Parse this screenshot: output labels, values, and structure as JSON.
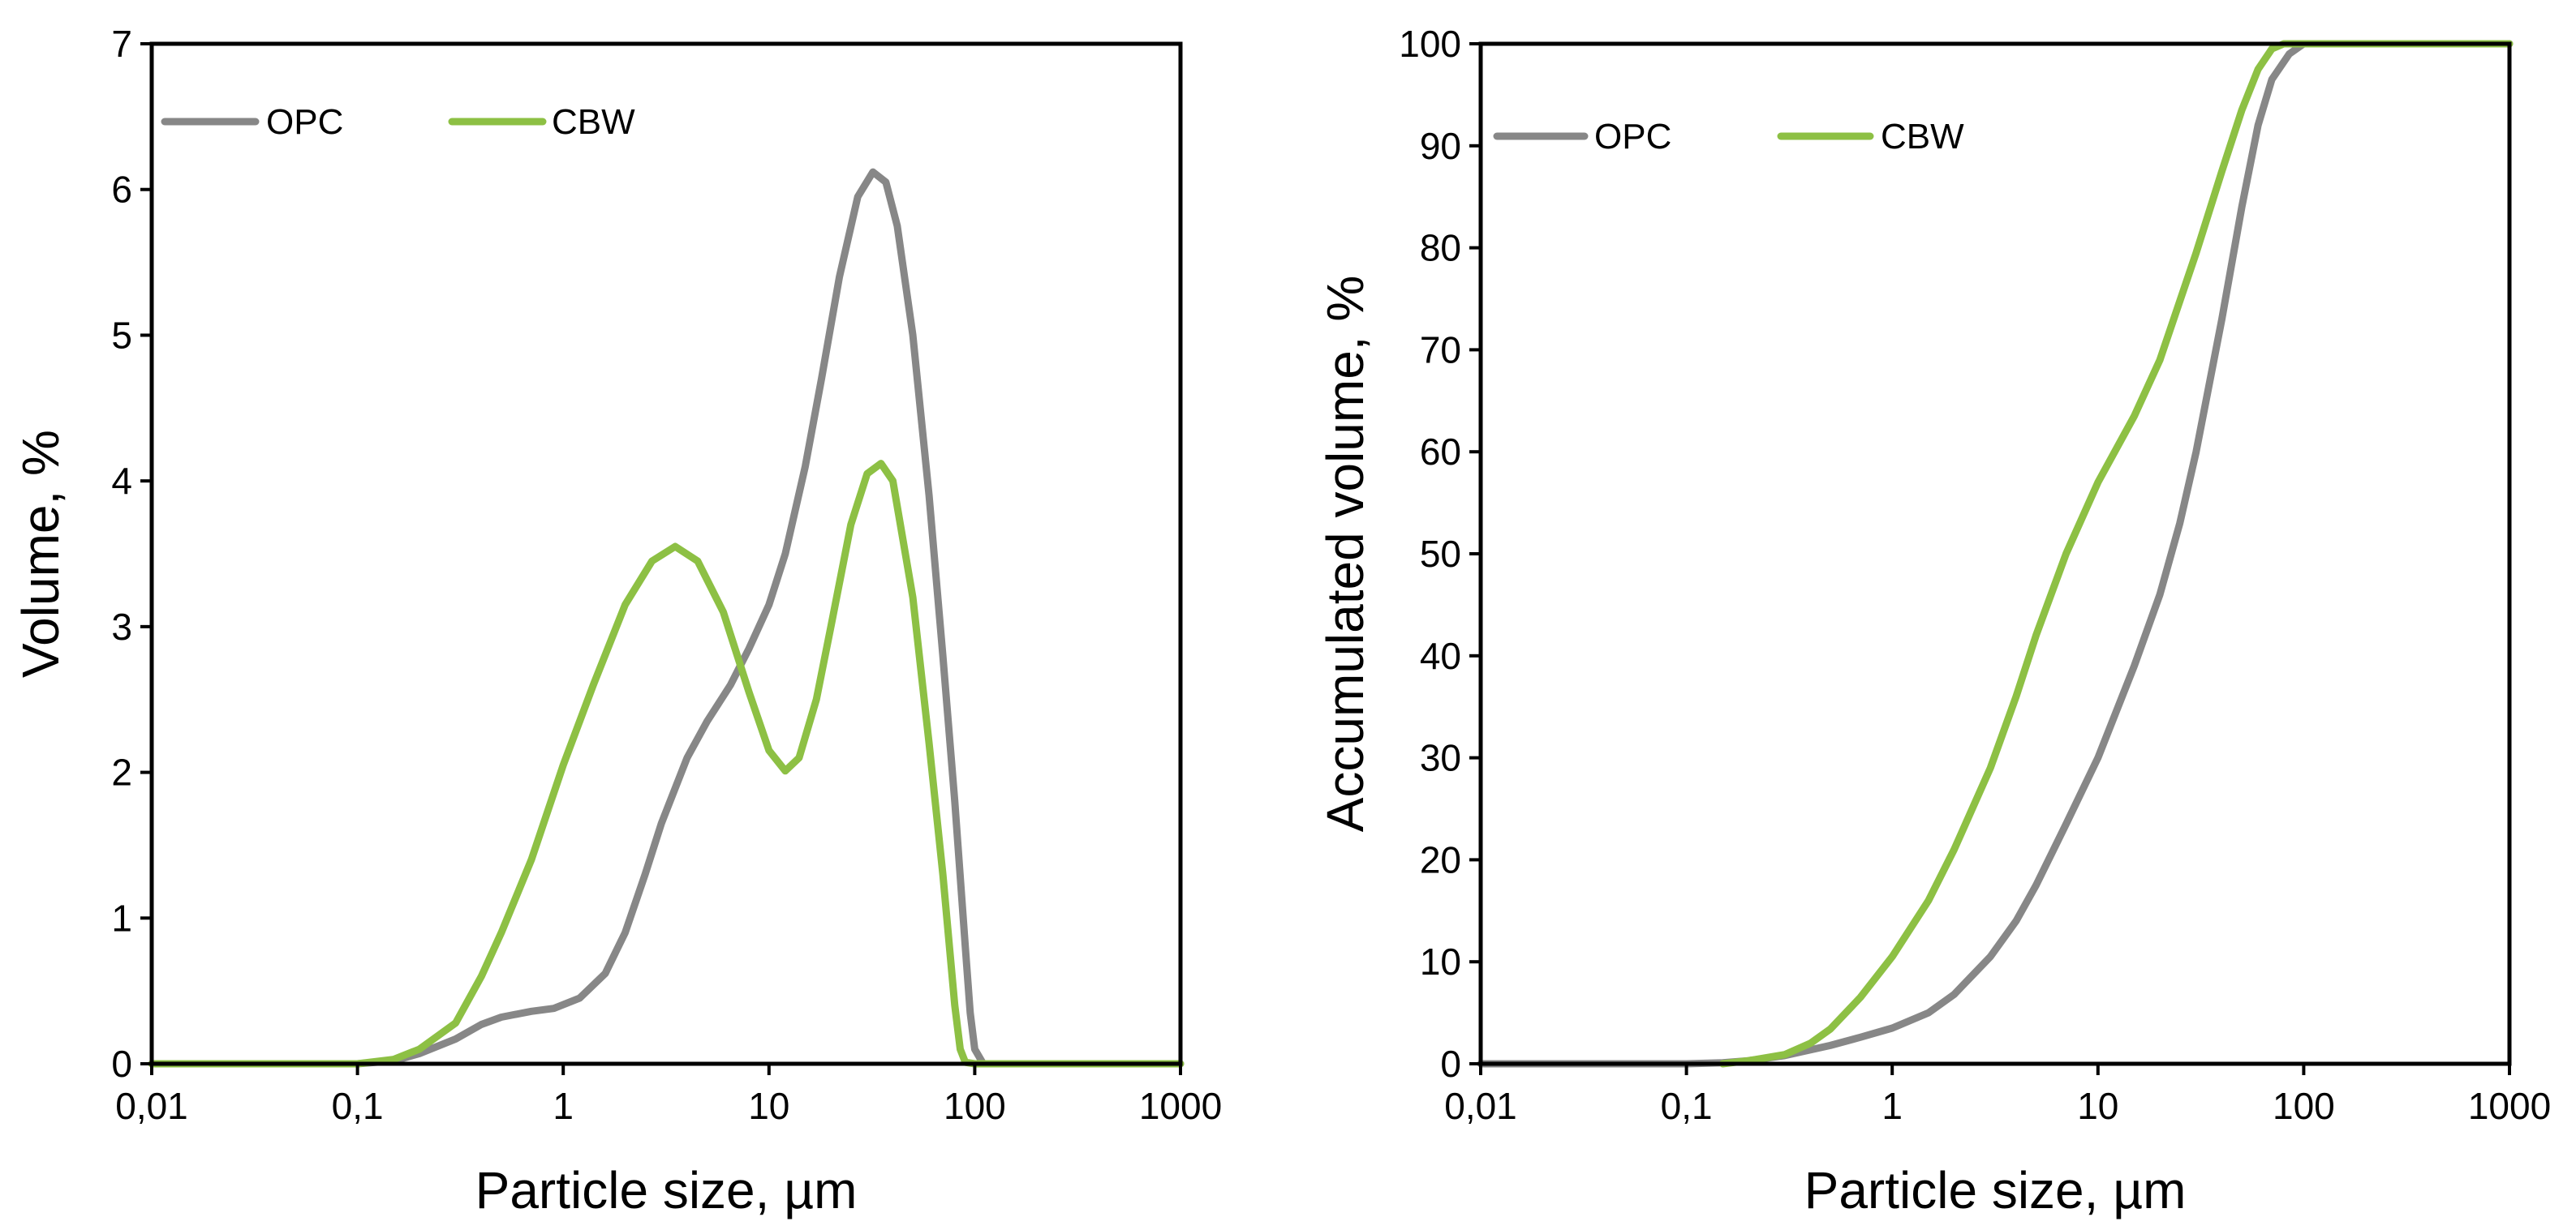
{
  "chart_data": [
    {
      "id": "left",
      "type": "line",
      "title": "",
      "xlabel": "Particle size, µm",
      "ylabel": "Volume, %",
      "xscale": "log",
      "xlim": [
        0.01,
        1000
      ],
      "ylim": [
        0,
        7
      ],
      "xticks": [
        0.01,
        0.1,
        1,
        10,
        100,
        1000
      ],
      "xtick_labels": [
        "0,01",
        "0,1",
        "1",
        "10",
        "100",
        "1000"
      ],
      "yticks": [
        0,
        1,
        2,
        3,
        4,
        5,
        6,
        7
      ],
      "ytick_labels": [
        "0",
        "1",
        "2",
        "3",
        "4",
        "5",
        "6",
        "7"
      ],
      "grid": false,
      "legend": "top-left",
      "series": [
        {
          "name": "OPC",
          "color": "#878787",
          "points": [
            [
              0.01,
              0
            ],
            [
              0.1,
              0
            ],
            [
              0.15,
              0.02
            ],
            [
              0.2,
              0.07
            ],
            [
              0.3,
              0.17
            ],
            [
              0.4,
              0.27
            ],
            [
              0.5,
              0.32
            ],
            [
              0.7,
              0.36
            ],
            [
              0.9,
              0.38
            ],
            [
              1.2,
              0.45
            ],
            [
              1.6,
              0.62
            ],
            [
              2,
              0.9
            ],
            [
              2.5,
              1.3
            ],
            [
              3,
              1.65
            ],
            [
              4,
              2.1
            ],
            [
              5,
              2.35
            ],
            [
              6.5,
              2.6
            ],
            [
              8,
              2.85
            ],
            [
              10,
              3.15
            ],
            [
              12,
              3.5
            ],
            [
              15,
              4.1
            ],
            [
              18,
              4.7
            ],
            [
              22,
              5.4
            ],
            [
              27,
              5.95
            ],
            [
              32,
              6.12
            ],
            [
              37,
              6.05
            ],
            [
              42,
              5.75
            ],
            [
              50,
              5.0
            ],
            [
              60,
              3.9
            ],
            [
              70,
              2.8
            ],
            [
              80,
              1.8
            ],
            [
              90,
              0.8
            ],
            [
              95,
              0.35
            ],
            [
              100,
              0.1
            ],
            [
              110,
              0
            ],
            [
              1000,
              0
            ]
          ]
        },
        {
          "name": "CBW",
          "color": "#8dc044",
          "points": [
            [
              0.01,
              0
            ],
            [
              0.1,
              0
            ],
            [
              0.15,
              0.03
            ],
            [
              0.2,
              0.1
            ],
            [
              0.3,
              0.28
            ],
            [
              0.4,
              0.6
            ],
            [
              0.5,
              0.9
            ],
            [
              0.7,
              1.4
            ],
            [
              1,
              2.05
            ],
            [
              1.4,
              2.6
            ],
            [
              2,
              3.15
            ],
            [
              2.7,
              3.45
            ],
            [
              3.5,
              3.55
            ],
            [
              4.5,
              3.45
            ],
            [
              6,
              3.1
            ],
            [
              8,
              2.55
            ],
            [
              10,
              2.15
            ],
            [
              12,
              2.01
            ],
            [
              14,
              2.1
            ],
            [
              17,
              2.5
            ],
            [
              20,
              3.0
            ],
            [
              25,
              3.7
            ],
            [
              30,
              4.05
            ],
            [
              35,
              4.12
            ],
            [
              40,
              4.0
            ],
            [
              50,
              3.2
            ],
            [
              60,
              2.2
            ],
            [
              70,
              1.3
            ],
            [
              80,
              0.4
            ],
            [
              85,
              0.1
            ],
            [
              90,
              0.01
            ],
            [
              100,
              0
            ],
            [
              1000,
              0
            ]
          ]
        }
      ]
    },
    {
      "id": "right",
      "type": "line",
      "title": "",
      "xlabel": "Particle size, µm",
      "ylabel": "Accumulated volume, %",
      "xscale": "log",
      "xlim": [
        0.01,
        1000
      ],
      "ylim": [
        0,
        100
      ],
      "xticks": [
        0.01,
        0.1,
        1,
        10,
        100,
        1000
      ],
      "xtick_labels": [
        "0,01",
        "0,1",
        "1",
        "10",
        "100",
        "1000"
      ],
      "yticks": [
        0,
        10,
        20,
        30,
        40,
        50,
        60,
        70,
        80,
        90,
        100
      ],
      "ytick_labels": [
        "0",
        "10",
        "20",
        "30",
        "40",
        "50",
        "60",
        "70",
        "80",
        "90",
        "100"
      ],
      "grid": false,
      "legend": "top-left",
      "series": [
        {
          "name": "OPC",
          "color": "#878787",
          "points": [
            [
              0.01,
              0
            ],
            [
              0.1,
              0
            ],
            [
              0.15,
              0.1
            ],
            [
              0.2,
              0.3
            ],
            [
              0.3,
              0.8
            ],
            [
              0.5,
              1.8
            ],
            [
              0.7,
              2.6
            ],
            [
              1,
              3.5
            ],
            [
              1.5,
              5.0
            ],
            [
              2,
              6.8
            ],
            [
              3,
              10.5
            ],
            [
              4,
              14.0
            ],
            [
              5,
              17.5
            ],
            [
              7,
              23.5
            ],
            [
              10,
              30.0
            ],
            [
              15,
              39.0
            ],
            [
              20,
              46.0
            ],
            [
              25,
              53.0
            ],
            [
              30,
              60.0
            ],
            [
              40,
              73.0
            ],
            [
              50,
              84.0
            ],
            [
              60,
              92.0
            ],
            [
              70,
              96.5
            ],
            [
              85,
              99.0
            ],
            [
              100,
              100
            ],
            [
              1000,
              100
            ]
          ]
        },
        {
          "name": "CBW",
          "color": "#8dc044",
          "points": [
            [
              0.15,
              0
            ],
            [
              0.2,
              0.3
            ],
            [
              0.3,
              0.9
            ],
            [
              0.4,
              2.0
            ],
            [
              0.5,
              3.4
            ],
            [
              0.7,
              6.5
            ],
            [
              1,
              10.5
            ],
            [
              1.5,
              16.0
            ],
            [
              2,
              21.0
            ],
            [
              3,
              29.0
            ],
            [
              4,
              36.0
            ],
            [
              5,
              42.0
            ],
            [
              7,
              50.0
            ],
            [
              10,
              57.0
            ],
            [
              15,
              63.5
            ],
            [
              20,
              69.0
            ],
            [
              30,
              79.5
            ],
            [
              40,
              87.5
            ],
            [
              50,
              93.5
            ],
            [
              60,
              97.5
            ],
            [
              70,
              99.5
            ],
            [
              80,
              100
            ],
            [
              1000,
              100
            ]
          ]
        }
      ]
    }
  ]
}
